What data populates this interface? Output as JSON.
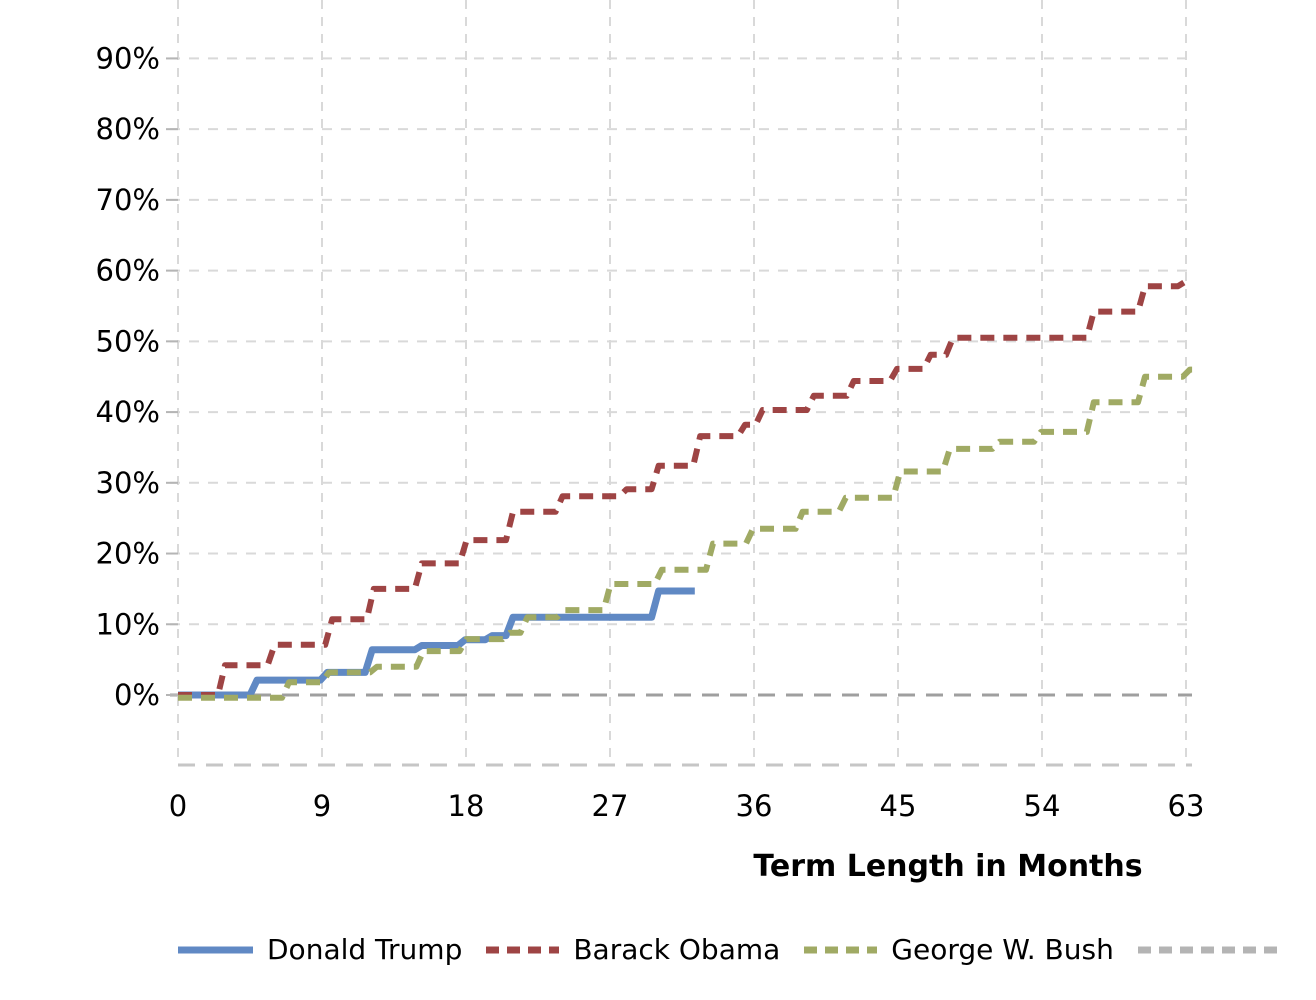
{
  "figure": {
    "xaxis_title": "Term Length in Months"
  },
  "chart_data": {
    "type": "line",
    "subtype": "step",
    "title": "",
    "xlabel": "Term Length in Months",
    "ylabel": "",
    "x_ticks": [
      0,
      9,
      18,
      27,
      36,
      45,
      54,
      63
    ],
    "y_ticks_percent": [
      0,
      10,
      20,
      30,
      40,
      50,
      60,
      70,
      80,
      90
    ],
    "xlim_months": [
      0,
      63.4
    ],
    "ylim_percent": [
      -10,
      98
    ],
    "grid": true,
    "gridline_style": "dashed",
    "legend_position": "bottom",
    "axis_colors": {
      "gridline": "#d9d9d9",
      "zero_line": "#9f9f9f",
      "bottom_border": "#c6c6c6",
      "tick": "#b5b5b5"
    },
    "series": [
      {
        "name": "Donald Trump",
        "color": "#6089c4",
        "style": "solid",
        "line_width": 7,
        "end_month": 32.3,
        "points": [
          [
            0,
            0
          ],
          [
            4.5,
            2.1
          ],
          [
            8.9,
            3.2
          ],
          [
            11.7,
            6.4
          ],
          [
            14.8,
            7.0
          ],
          [
            17.5,
            7.8
          ],
          [
            19.2,
            8.4
          ],
          [
            20.5,
            11.0
          ],
          [
            29.6,
            14.7
          ]
        ]
      },
      {
        "name": "Barack Obama",
        "color": "#9e4444",
        "style": "dashed",
        "line_width": 6,
        "end_month": 63.4,
        "points": [
          [
            0,
            0
          ],
          [
            2.5,
            4.2
          ],
          [
            5.6,
            7.1
          ],
          [
            9.2,
            10.7
          ],
          [
            11.8,
            15.0
          ],
          [
            14.8,
            18.6
          ],
          [
            17.6,
            21.9
          ],
          [
            20.5,
            25.9
          ],
          [
            23.6,
            28.1
          ],
          [
            27.6,
            29.1
          ],
          [
            29.6,
            32.4
          ],
          [
            32.2,
            36.6
          ],
          [
            35.0,
            38.2
          ],
          [
            36.1,
            40.3
          ],
          [
            39.3,
            42.3
          ],
          [
            41.8,
            44.4
          ],
          [
            44.5,
            46.1
          ],
          [
            46.6,
            48.1
          ],
          [
            48.0,
            50.5
          ],
          [
            56.8,
            54.2
          ],
          [
            60.0,
            57.8
          ],
          [
            62.5,
            58.4
          ]
        ]
      },
      {
        "name": "George W. Bush",
        "color": "#a0aa64",
        "style": "dashed",
        "line_width": 6,
        "end_month": 63.4,
        "points": [
          [
            0,
            -0.4
          ],
          [
            6.5,
            1.8
          ],
          [
            9.0,
            3.2
          ],
          [
            12.0,
            4.0
          ],
          [
            14.9,
            6.2
          ],
          [
            17.6,
            7.9
          ],
          [
            20.3,
            8.8
          ],
          [
            21.4,
            11.0
          ],
          [
            23.7,
            12.0
          ],
          [
            26.6,
            15.7
          ],
          [
            29.8,
            17.7
          ],
          [
            33.0,
            21.4
          ],
          [
            35.5,
            23.5
          ],
          [
            38.6,
            25.9
          ],
          [
            41.3,
            27.9
          ],
          [
            44.7,
            31.6
          ],
          [
            47.8,
            34.8
          ],
          [
            50.9,
            35.8
          ],
          [
            53.5,
            37.2
          ],
          [
            56.8,
            41.4
          ],
          [
            60.0,
            45.0
          ],
          [
            62.8,
            46.0
          ]
        ]
      },
      {
        "name": "",
        "color": "#b4b4b4",
        "style": "dashed",
        "line_width": 6,
        "end_month": null,
        "points": []
      }
    ]
  }
}
